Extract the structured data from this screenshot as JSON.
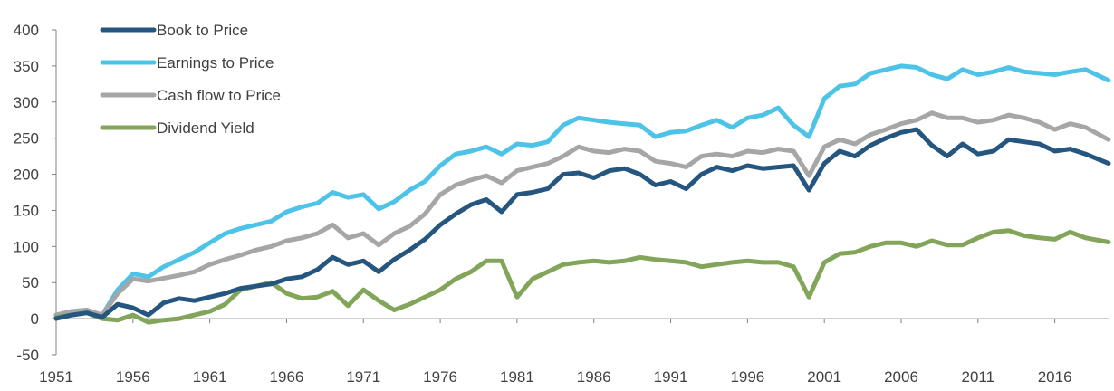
{
  "chart_data": {
    "type": "line",
    "title": "",
    "xlabel": "",
    "ylabel": "",
    "xlim": [
      1951,
      2019.5
    ],
    "ylim": [
      -50,
      400
    ],
    "x_ticks": [
      "1951",
      "1956",
      "1961",
      "1966",
      "1971",
      "1976",
      "1981",
      "1986",
      "1991",
      "1996",
      "2001",
      "2006",
      "2011",
      "2016"
    ],
    "y_ticks": [
      "400",
      "350",
      "300",
      "250",
      "200",
      "150",
      "100",
      "50",
      "0",
      "-50"
    ],
    "grid": false,
    "legend_position": "top-left",
    "x": [
      1951,
      1952,
      1953,
      1954,
      1955,
      1956,
      1957,
      1958,
      1959,
      1960,
      1961,
      1962,
      1963,
      1964,
      1965,
      1966,
      1967,
      1968,
      1969,
      1970,
      1971,
      1972,
      1973,
      1974,
      1975,
      1976,
      1977,
      1978,
      1979,
      1980,
      1981,
      1982,
      1983,
      1984,
      1985,
      1986,
      1987,
      1988,
      1989,
      1990,
      1991,
      1992,
      1993,
      1994,
      1995,
      1996,
      1997,
      1998,
      1999,
      2000,
      2001,
      2002,
      2003,
      2004,
      2005,
      2006,
      2007,
      2008,
      2009,
      2010,
      2011,
      2012,
      2013,
      2014,
      2015,
      2016,
      2017,
      2018,
      2019.5
    ],
    "series": [
      {
        "name": "Book to Price",
        "color": "#25567f",
        "values": [
          0,
          5,
          8,
          2,
          20,
          15,
          5,
          22,
          28,
          25,
          30,
          35,
          42,
          45,
          48,
          55,
          58,
          68,
          85,
          75,
          80,
          65,
          82,
          95,
          110,
          130,
          145,
          158,
          165,
          148,
          172,
          175,
          180,
          200,
          202,
          195,
          205,
          208,
          200,
          185,
          190,
          180,
          200,
          210,
          205,
          212,
          208,
          210,
          212,
          178,
          215,
          232,
          225,
          240,
          250,
          258,
          262,
          240,
          225,
          242,
          228,
          232,
          248,
          245,
          242,
          232,
          235,
          228,
          215
        ]
      },
      {
        "name": "Earnings to Price",
        "color": "#4dc3e8",
        "values": [
          5,
          10,
          12,
          5,
          40,
          62,
          58,
          72,
          82,
          92,
          105,
          118,
          125,
          130,
          135,
          148,
          155,
          160,
          175,
          168,
          172,
          152,
          162,
          178,
          190,
          212,
          228,
          232,
          238,
          228,
          242,
          240,
          245,
          268,
          278,
          275,
          272,
          270,
          268,
          252,
          258,
          260,
          268,
          275,
          265,
          278,
          282,
          292,
          268,
          252,
          305,
          322,
          325,
          340,
          345,
          350,
          348,
          338,
          332,
          345,
          338,
          342,
          348,
          342,
          340,
          338,
          342,
          345,
          330
        ]
      },
      {
        "name": "Cash flow to Price",
        "color": "#a6a6a6",
        "values": [
          5,
          10,
          12,
          5,
          35,
          55,
          52,
          56,
          60,
          65,
          75,
          82,
          88,
          95,
          100,
          108,
          112,
          118,
          130,
          112,
          118,
          102,
          118,
          128,
          145,
          172,
          185,
          192,
          198,
          188,
          205,
          210,
          215,
          225,
          238,
          232,
          230,
          235,
          232,
          218,
          215,
          210,
          225,
          228,
          225,
          232,
          230,
          235,
          232,
          198,
          238,
          248,
          242,
          255,
          262,
          270,
          275,
          285,
          278,
          278,
          272,
          275,
          282,
          278,
          272,
          262,
          270,
          265,
          248
        ]
      },
      {
        "name": "Dividend Yield",
        "color": "#82a55a",
        "values": [
          2,
          5,
          8,
          0,
          -2,
          5,
          -5,
          -2,
          0,
          5,
          10,
          20,
          40,
          45,
          50,
          35,
          28,
          30,
          38,
          18,
          40,
          25,
          12,
          20,
          30,
          40,
          55,
          65,
          80,
          80,
          30,
          55,
          65,
          75,
          78,
          80,
          78,
          80,
          85,
          82,
          80,
          78,
          72,
          75,
          78,
          80,
          78,
          78,
          72,
          30,
          78,
          90,
          92,
          100,
          105,
          105,
          100,
          108,
          102,
          102,
          112,
          120,
          122,
          115,
          112,
          110,
          120,
          112,
          106
        ]
      }
    ]
  }
}
